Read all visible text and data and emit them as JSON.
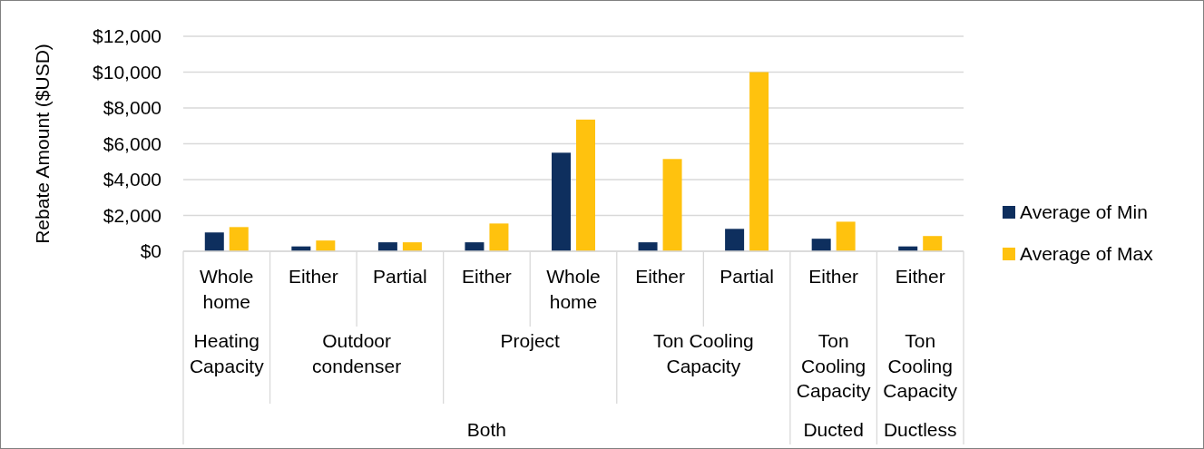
{
  "chart_data": {
    "type": "bar",
    "ylabel": "Rebate Amount ($USD)",
    "categories": [
      "Whole home",
      "Either",
      "Partial",
      "Either",
      "Whole home",
      "Either",
      "Partial",
      "Either",
      "Either"
    ],
    "series": [
      {
        "name": "Average of Min",
        "color": "#0e2f5e",
        "values": [
          1050,
          270,
          500,
          500,
          5500,
          500,
          1250,
          700,
          270
        ]
      },
      {
        "name": "Average of Max",
        "color": "#ffc20e",
        "values": [
          1350,
          600,
          500,
          1550,
          7350,
          5150,
          10000,
          1650,
          850
        ]
      }
    ],
    "ylim": [
      0,
      12000
    ],
    "yticks": [
      {
        "value": 0,
        "label": "$0"
      },
      {
        "value": 2000,
        "label": "$2,000"
      },
      {
        "value": 4000,
        "label": "$4,000"
      },
      {
        "value": 6000,
        "label": "$6,000"
      },
      {
        "value": 8000,
        "label": "$8,000"
      },
      {
        "value": 10000,
        "label": "$10,000"
      },
      {
        "value": 12000,
        "label": "$12,000"
      }
    ],
    "grid": "y",
    "legend": "right",
    "annotations": [
      "Heating Capacity",
      "Outdoor condenser",
      "Project",
      "Ton Cooling Capacity",
      "Ton Cooling Capacity",
      "Ton Cooling Capacity",
      "Both",
      "Ducted",
      "Ductless"
    ]
  }
}
